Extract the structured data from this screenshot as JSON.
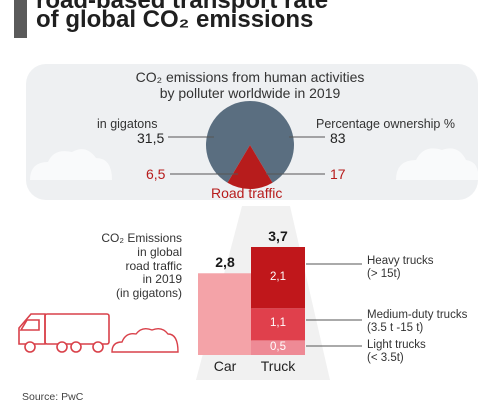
{
  "title": {
    "line1": "road-based transport rate",
    "line2": "of global CO₂ emissions"
  },
  "panel": {
    "title_line1": "CO₂ emissions from human activities",
    "title_line2": "by polluter worldwide in 2019",
    "unit_left": "in gigatons",
    "unit_right": "Percentage ownership %",
    "total_value": "31,5",
    "total_share": "83",
    "road_value": "6,5",
    "road_share": "17",
    "road_label": "Road traffic"
  },
  "caption": {
    "line1": "CO₂ Emissions",
    "line2": "in global",
    "line3": "road traffic",
    "line4": "in 2019",
    "line5": "(in gigatons)"
  },
  "source": "Source: PwC",
  "colors": {
    "pie_main": "#5a6e80",
    "road_red": "#b71c1c",
    "car_pink": "#f4a3a8",
    "heavy": "#c0171b",
    "medium": "#e0404c",
    "light": "#ee8a95",
    "panel_bg": "#eef0f2"
  },
  "chart_data": [
    {
      "type": "pie",
      "title": "CO₂ emissions from human activities by polluter worldwide in 2019",
      "unit": "in gigatons",
      "slices": [
        {
          "name": "",
          "value": 31.5,
          "share_pct": 83
        },
        {
          "name": "Road traffic",
          "value": 6.5,
          "share_pct": 17
        }
      ]
    },
    {
      "type": "bar",
      "title": "CO₂ Emissions in global road traffic in 2019 (in gigatons)",
      "categories": [
        "Car",
        "Truck"
      ],
      "totals": [
        "2,8",
        "3,7"
      ],
      "ylim": [
        0,
        3.7
      ],
      "series": [
        {
          "name": "",
          "values": [
            2.8,
            0
          ],
          "labels": [
            "",
            ""
          ]
        },
        {
          "name": "Light trucks (< 3.5t)",
          "values": [
            0,
            0.5
          ],
          "labels": [
            "",
            "0,5"
          ]
        },
        {
          "name": "Medium-duty trucks (3.5 t -15 t)",
          "values": [
            0,
            1.1
          ],
          "labels": [
            "",
            "1,1"
          ]
        },
        {
          "name": "Heavy trucks (> 15t)",
          "values": [
            0,
            2.1
          ],
          "labels": [
            "",
            "2,1"
          ]
        }
      ],
      "legend": [
        {
          "line1": "Heavy trucks",
          "line2": "(> 15t)"
        },
        {
          "line1": "Medium-duty trucks",
          "line2": "(3.5 t -15 t)"
        },
        {
          "line1": "Light trucks",
          "line2": "(< 3.5t)"
        }
      ]
    }
  ]
}
